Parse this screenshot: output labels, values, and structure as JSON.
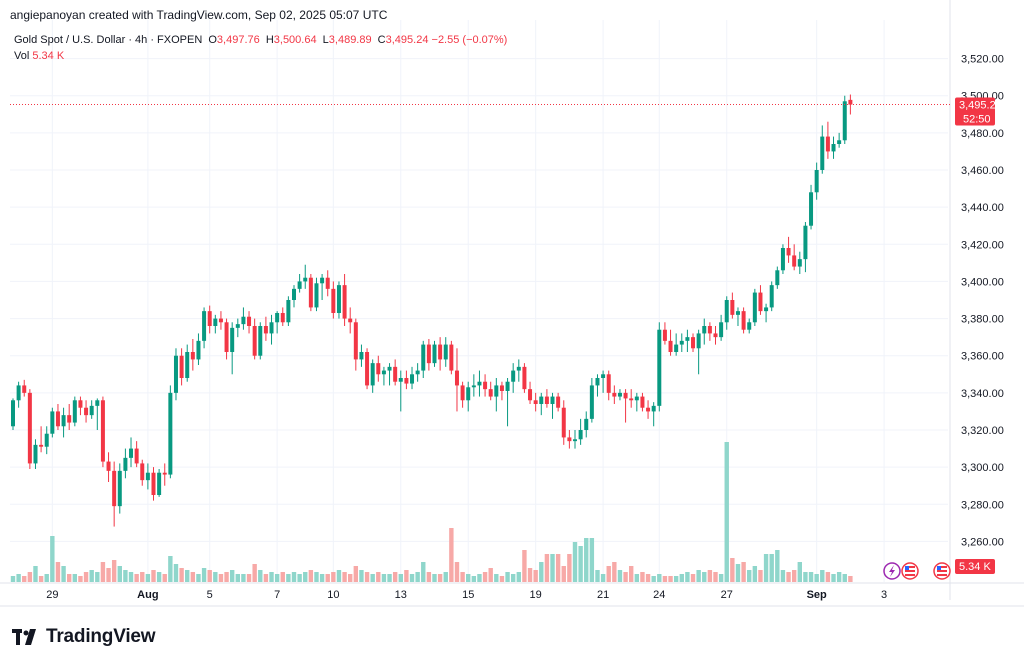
{
  "header": {
    "created_by": "angiepanoyan created with TradingView.com, Sep 02, 2025 05:07 UTC"
  },
  "legend": {
    "symbol": "Gold Spot / U.S. Dollar · 4h · FXOPEN",
    "o_label": "O",
    "o_value": "3,497.76",
    "h_label": "H",
    "h_value": "3,500.64",
    "l_label": "L",
    "l_value": "3,489.89",
    "c_label": "C",
    "c_value": "3,495.24",
    "change": "−2.55 (−0.07%)",
    "vol_label": "Vol",
    "vol_value": "5.34 K"
  },
  "price_badge": {
    "price": "3,495.24",
    "countdown": "52:50",
    "color": "#f23645"
  },
  "volume_badge": {
    "value": "5.34 K",
    "color": "#f23645"
  },
  "brand": {
    "name": "TradingView"
  },
  "colors": {
    "up": "#089981",
    "down": "#f23645",
    "vol_up": "#8fd6cb",
    "vol_down": "#f7a9a7"
  },
  "chart_data": {
    "type": "candlestick",
    "ylim": [
      3250,
      3530
    ],
    "yticks": [
      {
        "value": 3260,
        "label": "3,260.00"
      },
      {
        "value": 3280,
        "label": "3,280.00"
      },
      {
        "value": 3300,
        "label": "3,300.00"
      },
      {
        "value": 3320,
        "label": "3,320.00"
      },
      {
        "value": 3340,
        "label": "3,340.00"
      },
      {
        "value": 3360,
        "label": "3,360.00"
      },
      {
        "value": 3380,
        "label": "3,380.00"
      },
      {
        "value": 3400,
        "label": "3,400.00"
      },
      {
        "value": 3420,
        "label": "3,420.00"
      },
      {
        "value": 3440,
        "label": "3,440.00"
      },
      {
        "value": 3460,
        "label": "3,460.00"
      },
      {
        "value": 3480,
        "label": "3,480.00"
      },
      {
        "value": 3500,
        "label": "3,500.00"
      },
      {
        "value": 3520,
        "label": "3,520.00"
      }
    ],
    "xticks": [
      {
        "label": "29",
        "index": 7,
        "bold": false
      },
      {
        "label": "Aug",
        "index": 24,
        "bold": true
      },
      {
        "label": "5",
        "index": 35,
        "bold": false
      },
      {
        "label": "7",
        "index": 47,
        "bold": false
      },
      {
        "label": "10",
        "index": 57,
        "bold": false
      },
      {
        "label": "13",
        "index": 69,
        "bold": false
      },
      {
        "label": "15",
        "index": 81,
        "bold": false
      },
      {
        "label": "19",
        "index": 93,
        "bold": false
      },
      {
        "label": "21",
        "index": 105,
        "bold": false
      },
      {
        "label": "24",
        "index": 115,
        "bold": false
      },
      {
        "label": "27",
        "index": 127,
        "bold": false
      },
      {
        "label": "Sep",
        "index": 143,
        "bold": true
      },
      {
        "label": "3",
        "index": 155,
        "bold": false
      }
    ],
    "last_price": 3495.24,
    "candles": [
      {
        "o": 3322,
        "h": 3337,
        "l": 3320,
        "c": 3336,
        "v": 3
      },
      {
        "o": 3336,
        "h": 3346,
        "l": 3332,
        "c": 3344,
        "v": 4
      },
      {
        "o": 3344,
        "h": 3347,
        "l": 3338,
        "c": 3340,
        "v": 3
      },
      {
        "o": 3340,
        "h": 3342,
        "l": 3299,
        "c": 3302,
        "v": 5
      },
      {
        "o": 3302,
        "h": 3315,
        "l": 3299,
        "c": 3312,
        "v": 8
      },
      {
        "o": 3312,
        "h": 3322,
        "l": 3308,
        "c": 3311,
        "v": 3
      },
      {
        "o": 3311,
        "h": 3322,
        "l": 3307,
        "c": 3318,
        "v": 4
      },
      {
        "o": 3318,
        "h": 3332,
        "l": 3316,
        "c": 3330,
        "v": 23
      },
      {
        "o": 3330,
        "h": 3334,
        "l": 3320,
        "c": 3322,
        "v": 10
      },
      {
        "o": 3322,
        "h": 3332,
        "l": 3316,
        "c": 3328,
        "v": 8
      },
      {
        "o": 3328,
        "h": 3334,
        "l": 3320,
        "c": 3324,
        "v": 4
      },
      {
        "o": 3324,
        "h": 3338,
        "l": 3322,
        "c": 3336,
        "v": 4
      },
      {
        "o": 3336,
        "h": 3338,
        "l": 3328,
        "c": 3332,
        "v": 3
      },
      {
        "o": 3332,
        "h": 3336,
        "l": 3324,
        "c": 3328,
        "v": 5
      },
      {
        "o": 3328,
        "h": 3336,
        "l": 3326,
        "c": 3333,
        "v": 6
      },
      {
        "o": 3333,
        "h": 3337,
        "l": 3320,
        "c": 3336,
        "v": 5
      },
      {
        "o": 3336,
        "h": 3338,
        "l": 3300,
        "c": 3303,
        "v": 10
      },
      {
        "o": 3303,
        "h": 3308,
        "l": 3292,
        "c": 3298,
        "v": 7
      },
      {
        "o": 3298,
        "h": 3303,
        "l": 3268,
        "c": 3279,
        "v": 11
      },
      {
        "o": 3279,
        "h": 3302,
        "l": 3275,
        "c": 3298,
        "v": 8
      },
      {
        "o": 3298,
        "h": 3310,
        "l": 3294,
        "c": 3305,
        "v": 6
      },
      {
        "o": 3305,
        "h": 3316,
        "l": 3300,
        "c": 3310,
        "v": 5
      },
      {
        "o": 3310,
        "h": 3314,
        "l": 3300,
        "c": 3302,
        "v": 4
      },
      {
        "o": 3302,
        "h": 3304,
        "l": 3290,
        "c": 3293,
        "v": 5
      },
      {
        "o": 3293,
        "h": 3302,
        "l": 3288,
        "c": 3297,
        "v": 4
      },
      {
        "o": 3297,
        "h": 3300,
        "l": 3282,
        "c": 3285,
        "v": 6
      },
      {
        "o": 3285,
        "h": 3299,
        "l": 3284,
        "c": 3297,
        "v": 5
      },
      {
        "o": 3297,
        "h": 3302,
        "l": 3290,
        "c": 3296,
        "v": 4
      },
      {
        "o": 3296,
        "h": 3344,
        "l": 3294,
        "c": 3340,
        "v": 13
      },
      {
        "o": 3340,
        "h": 3364,
        "l": 3336,
        "c": 3360,
        "v": 9
      },
      {
        "o": 3360,
        "h": 3364,
        "l": 3344,
        "c": 3348,
        "v": 7
      },
      {
        "o": 3348,
        "h": 3366,
        "l": 3346,
        "c": 3362,
        "v": 6
      },
      {
        "o": 3362,
        "h": 3369,
        "l": 3352,
        "c": 3358,
        "v": 5
      },
      {
        "o": 3358,
        "h": 3372,
        "l": 3355,
        "c": 3368,
        "v": 4
      },
      {
        "o": 3368,
        "h": 3386,
        "l": 3364,
        "c": 3384,
        "v": 7
      },
      {
        "o": 3384,
        "h": 3387,
        "l": 3372,
        "c": 3376,
        "v": 6
      },
      {
        "o": 3376,
        "h": 3382,
        "l": 3372,
        "c": 3380,
        "v": 5
      },
      {
        "o": 3380,
        "h": 3384,
        "l": 3374,
        "c": 3378,
        "v": 4
      },
      {
        "o": 3378,
        "h": 3380,
        "l": 3358,
        "c": 3362,
        "v": 5
      },
      {
        "o": 3362,
        "h": 3378,
        "l": 3350,
        "c": 3375,
        "v": 6
      },
      {
        "o": 3375,
        "h": 3380,
        "l": 3370,
        "c": 3377,
        "v": 4
      },
      {
        "o": 3377,
        "h": 3386,
        "l": 3374,
        "c": 3381,
        "v": 4
      },
      {
        "o": 3381,
        "h": 3384,
        "l": 3372,
        "c": 3376,
        "v": 4
      },
      {
        "o": 3376,
        "h": 3380,
        "l": 3358,
        "c": 3360,
        "v": 9
      },
      {
        "o": 3360,
        "h": 3378,
        "l": 3358,
        "c": 3376,
        "v": 6
      },
      {
        "o": 3376,
        "h": 3381,
        "l": 3368,
        "c": 3372,
        "v": 4
      },
      {
        "o": 3372,
        "h": 3382,
        "l": 3366,
        "c": 3378,
        "v": 5
      },
      {
        "o": 3378,
        "h": 3384,
        "l": 3372,
        "c": 3383,
        "v": 4
      },
      {
        "o": 3383,
        "h": 3386,
        "l": 3376,
        "c": 3378,
        "v": 5
      },
      {
        "o": 3378,
        "h": 3392,
        "l": 3376,
        "c": 3390,
        "v": 4
      },
      {
        "o": 3390,
        "h": 3398,
        "l": 3386,
        "c": 3396,
        "v": 5
      },
      {
        "o": 3396,
        "h": 3404,
        "l": 3394,
        "c": 3400,
        "v": 4
      },
      {
        "o": 3400,
        "h": 3409,
        "l": 3396,
        "c": 3402,
        "v": 5
      },
      {
        "o": 3402,
        "h": 3404,
        "l": 3384,
        "c": 3386,
        "v": 6
      },
      {
        "o": 3386,
        "h": 3402,
        "l": 3384,
        "c": 3399,
        "v": 5
      },
      {
        "o": 3399,
        "h": 3404,
        "l": 3390,
        "c": 3402,
        "v": 4
      },
      {
        "o": 3402,
        "h": 3406,
        "l": 3392,
        "c": 3396,
        "v": 4
      },
      {
        "o": 3396,
        "h": 3400,
        "l": 3380,
        "c": 3383,
        "v": 5
      },
      {
        "o": 3383,
        "h": 3400,
        "l": 3380,
        "c": 3398,
        "v": 6
      },
      {
        "o": 3398,
        "h": 3404,
        "l": 3376,
        "c": 3380,
        "v": 5
      },
      {
        "o": 3380,
        "h": 3386,
        "l": 3372,
        "c": 3378,
        "v": 4
      },
      {
        "o": 3378,
        "h": 3380,
        "l": 3352,
        "c": 3358,
        "v": 8
      },
      {
        "o": 3358,
        "h": 3366,
        "l": 3354,
        "c": 3362,
        "v": 6
      },
      {
        "o": 3362,
        "h": 3364,
        "l": 3342,
        "c": 3344,
        "v": 5
      },
      {
        "o": 3344,
        "h": 3358,
        "l": 3340,
        "c": 3356,
        "v": 4
      },
      {
        "o": 3356,
        "h": 3360,
        "l": 3346,
        "c": 3350,
        "v": 5
      },
      {
        "o": 3350,
        "h": 3354,
        "l": 3344,
        "c": 3352,
        "v": 4
      },
      {
        "o": 3352,
        "h": 3356,
        "l": 3344,
        "c": 3354,
        "v": 4
      },
      {
        "o": 3354,
        "h": 3358,
        "l": 3344,
        "c": 3346,
        "v": 5
      },
      {
        "o": 3346,
        "h": 3352,
        "l": 3330,
        "c": 3348,
        "v": 4
      },
      {
        "o": 3348,
        "h": 3352,
        "l": 3342,
        "c": 3345,
        "v": 6
      },
      {
        "o": 3345,
        "h": 3354,
        "l": 3342,
        "c": 3350,
        "v": 4
      },
      {
        "o": 3350,
        "h": 3356,
        "l": 3346,
        "c": 3352,
        "v": 5
      },
      {
        "o": 3352,
        "h": 3368,
        "l": 3348,
        "c": 3366,
        "v": 10
      },
      {
        "o": 3366,
        "h": 3369,
        "l": 3352,
        "c": 3356,
        "v": 5
      },
      {
        "o": 3356,
        "h": 3368,
        "l": 3354,
        "c": 3366,
        "v": 4
      },
      {
        "o": 3366,
        "h": 3370,
        "l": 3352,
        "c": 3358,
        "v": 4
      },
      {
        "o": 3358,
        "h": 3370,
        "l": 3354,
        "c": 3366,
        "v": 5
      },
      {
        "o": 3366,
        "h": 3368,
        "l": 3350,
        "c": 3352,
        "v": 27
      },
      {
        "o": 3352,
        "h": 3364,
        "l": 3330,
        "c": 3344,
        "v": 10
      },
      {
        "o": 3344,
        "h": 3346,
        "l": 3332,
        "c": 3336,
        "v": 5
      },
      {
        "o": 3336,
        "h": 3346,
        "l": 3330,
        "c": 3343,
        "v": 4
      },
      {
        "o": 3343,
        "h": 3350,
        "l": 3338,
        "c": 3344,
        "v": 3
      },
      {
        "o": 3344,
        "h": 3352,
        "l": 3338,
        "c": 3346,
        "v": 4
      },
      {
        "o": 3346,
        "h": 3350,
        "l": 3338,
        "c": 3342,
        "v": 5
      },
      {
        "o": 3342,
        "h": 3346,
        "l": 3336,
        "c": 3338,
        "v": 7
      },
      {
        "o": 3338,
        "h": 3348,
        "l": 3330,
        "c": 3344,
        "v": 4
      },
      {
        "o": 3344,
        "h": 3346,
        "l": 3336,
        "c": 3341,
        "v": 3
      },
      {
        "o": 3341,
        "h": 3348,
        "l": 3322,
        "c": 3346,
        "v": 5
      },
      {
        "o": 3346,
        "h": 3356,
        "l": 3340,
        "c": 3352,
        "v": 4
      },
      {
        "o": 3352,
        "h": 3358,
        "l": 3346,
        "c": 3354,
        "v": 5
      },
      {
        "o": 3354,
        "h": 3356,
        "l": 3340,
        "c": 3342,
        "v": 16
      },
      {
        "o": 3342,
        "h": 3346,
        "l": 3334,
        "c": 3336,
        "v": 7
      },
      {
        "o": 3336,
        "h": 3340,
        "l": 3330,
        "c": 3334,
        "v": 6
      },
      {
        "o": 3334,
        "h": 3340,
        "l": 3328,
        "c": 3338,
        "v": 10
      },
      {
        "o": 3338,
        "h": 3342,
        "l": 3332,
        "c": 3334,
        "v": 14
      },
      {
        "o": 3334,
        "h": 3340,
        "l": 3326,
        "c": 3338,
        "v": 14
      },
      {
        "o": 3338,
        "h": 3340,
        "l": 3330,
        "c": 3332,
        "v": 14
      },
      {
        "o": 3332,
        "h": 3336,
        "l": 3312,
        "c": 3316,
        "v": 8
      },
      {
        "o": 3316,
        "h": 3320,
        "l": 3310,
        "c": 3314,
        "v": 14
      },
      {
        "o": 3314,
        "h": 3320,
        "l": 3310,
        "c": 3315,
        "v": 20
      },
      {
        "o": 3315,
        "h": 3326,
        "l": 3312,
        "c": 3320,
        "v": 18
      },
      {
        "o": 3320,
        "h": 3330,
        "l": 3316,
        "c": 3326,
        "v": 22
      },
      {
        "o": 3326,
        "h": 3348,
        "l": 3324,
        "c": 3344,
        "v": 22
      },
      {
        "o": 3344,
        "h": 3350,
        "l": 3338,
        "c": 3348,
        "v": 6
      },
      {
        "o": 3348,
        "h": 3352,
        "l": 3340,
        "c": 3350,
        "v": 4
      },
      {
        "o": 3350,
        "h": 3352,
        "l": 3336,
        "c": 3340,
        "v": 8
      },
      {
        "o": 3340,
        "h": 3344,
        "l": 3334,
        "c": 3338,
        "v": 10
      },
      {
        "o": 3338,
        "h": 3342,
        "l": 3336,
        "c": 3340,
        "v": 6
      },
      {
        "o": 3340,
        "h": 3342,
        "l": 3324,
        "c": 3337,
        "v": 5
      },
      {
        "o": 3337,
        "h": 3342,
        "l": 3332,
        "c": 3336,
        "v": 8
      },
      {
        "o": 3336,
        "h": 3340,
        "l": 3330,
        "c": 3338,
        "v": 4
      },
      {
        "o": 3338,
        "h": 3340,
        "l": 3330,
        "c": 3332,
        "v": 5
      },
      {
        "o": 3332,
        "h": 3336,
        "l": 3326,
        "c": 3330,
        "v": 4
      },
      {
        "o": 3330,
        "h": 3335,
        "l": 3322,
        "c": 3333,
        "v": 3
      },
      {
        "o": 3333,
        "h": 3378,
        "l": 3330,
        "c": 3374,
        "v": 4
      },
      {
        "o": 3374,
        "h": 3378,
        "l": 3366,
        "c": 3368,
        "v": 3
      },
      {
        "o": 3368,
        "h": 3374,
        "l": 3360,
        "c": 3362,
        "v": 3
      },
      {
        "o": 3362,
        "h": 3372,
        "l": 3360,
        "c": 3366,
        "v": 3
      },
      {
        "o": 3366,
        "h": 3372,
        "l": 3362,
        "c": 3368,
        "v": 4
      },
      {
        "o": 3368,
        "h": 3374,
        "l": 3362,
        "c": 3370,
        "v": 5
      },
      {
        "o": 3370,
        "h": 3372,
        "l": 3362,
        "c": 3364,
        "v": 4
      },
      {
        "o": 3364,
        "h": 3374,
        "l": 3350,
        "c": 3372,
        "v": 6
      },
      {
        "o": 3372,
        "h": 3380,
        "l": 3366,
        "c": 3376,
        "v": 5
      },
      {
        "o": 3376,
        "h": 3378,
        "l": 3368,
        "c": 3372,
        "v": 6
      },
      {
        "o": 3372,
        "h": 3376,
        "l": 3366,
        "c": 3370,
        "v": 5
      },
      {
        "o": 3370,
        "h": 3382,
        "l": 3368,
        "c": 3378,
        "v": 4
      },
      {
        "o": 3378,
        "h": 3392,
        "l": 3374,
        "c": 3390,
        "v": 70
      },
      {
        "o": 3390,
        "h": 3394,
        "l": 3380,
        "c": 3382,
        "v": 12
      },
      {
        "o": 3382,
        "h": 3386,
        "l": 3376,
        "c": 3384,
        "v": 9
      },
      {
        "o": 3384,
        "h": 3386,
        "l": 3372,
        "c": 3374,
        "v": 10
      },
      {
        "o": 3374,
        "h": 3380,
        "l": 3372,
        "c": 3378,
        "v": 6
      },
      {
        "o": 3378,
        "h": 3396,
        "l": 3376,
        "c": 3394,
        "v": 8
      },
      {
        "o": 3394,
        "h": 3398,
        "l": 3382,
        "c": 3384,
        "v": 6
      },
      {
        "o": 3384,
        "h": 3388,
        "l": 3378,
        "c": 3386,
        "v": 14
      },
      {
        "o": 3386,
        "h": 3400,
        "l": 3384,
        "c": 3398,
        "v": 14
      },
      {
        "o": 3398,
        "h": 3408,
        "l": 3396,
        "c": 3406,
        "v": 16
      },
      {
        "o": 3406,
        "h": 3420,
        "l": 3404,
        "c": 3418,
        "v": 6
      },
      {
        "o": 3418,
        "h": 3424,
        "l": 3410,
        "c": 3414,
        "v": 5
      },
      {
        "o": 3414,
        "h": 3420,
        "l": 3406,
        "c": 3408,
        "v": 6
      },
      {
        "o": 3408,
        "h": 3416,
        "l": 3404,
        "c": 3412,
        "v": 10
      },
      {
        "o": 3412,
        "h": 3432,
        "l": 3405,
        "c": 3430,
        "v": 5
      },
      {
        "o": 3430,
        "h": 3452,
        "l": 3428,
        "c": 3448,
        "v": 5
      },
      {
        "o": 3448,
        "h": 3464,
        "l": 3444,
        "c": 3460,
        "v": 4
      },
      {
        "o": 3460,
        "h": 3484,
        "l": 3458,
        "c": 3478,
        "v": 6
      },
      {
        "o": 3478,
        "h": 3486,
        "l": 3466,
        "c": 3470,
        "v": 5
      },
      {
        "o": 3470,
        "h": 3478,
        "l": 3466,
        "c": 3474,
        "v": 4
      },
      {
        "o": 3474,
        "h": 3480,
        "l": 3472,
        "c": 3476,
        "v": 5
      },
      {
        "o": 3476,
        "h": 3500,
        "l": 3474,
        "c": 3497,
        "v": 4
      },
      {
        "o": 3497.76,
        "h": 3500.64,
        "l": 3489.89,
        "c": 3495.24,
        "v": 3
      }
    ]
  }
}
